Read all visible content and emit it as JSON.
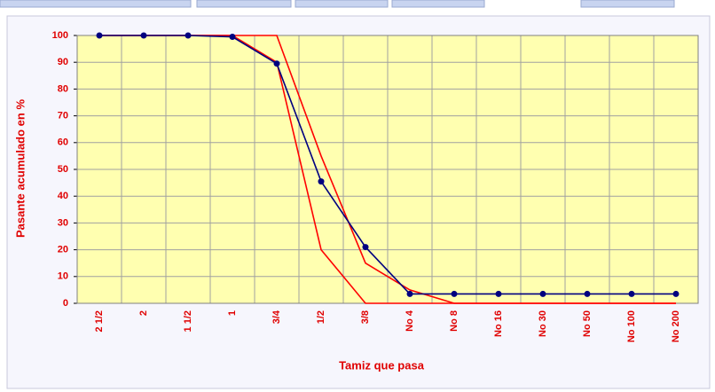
{
  "chart_data": {
    "type": "line",
    "x_label": "Tamiz que pasa",
    "y_label": "Pasante acumulado en %",
    "categories": [
      "2 1/2",
      "2",
      "1 1/2",
      "1",
      "3/4",
      "1/2",
      "3/8",
      "No 4",
      "No 8",
      "No 16",
      "No 30",
      "No 50",
      "No 100",
      "No 200"
    ],
    "series": [
      {
        "color": "#ff0000",
        "markers": false,
        "values": [
          100,
          100,
          100,
          100,
          100,
          55,
          15,
          5,
          0,
          0,
          0,
          0,
          0,
          0
        ]
      },
      {
        "color": "#ff0000",
        "markers": false,
        "values": [
          100,
          100,
          100,
          100,
          90,
          20,
          0,
          0,
          0,
          0,
          0,
          0,
          0,
          0
        ]
      },
      {
        "color": "#000080",
        "markers": true,
        "values": [
          100,
          100,
          100,
          99.5,
          89.5,
          45.5,
          21,
          3.5,
          3.5,
          3.5,
          3.5,
          3.5,
          3.5,
          3.5
        ]
      }
    ],
    "ylim": [
      0,
      100
    ],
    "yticks": [
      0,
      10,
      20,
      30,
      40,
      50,
      60,
      70,
      80,
      90,
      100
    ],
    "grid": true
  }
}
